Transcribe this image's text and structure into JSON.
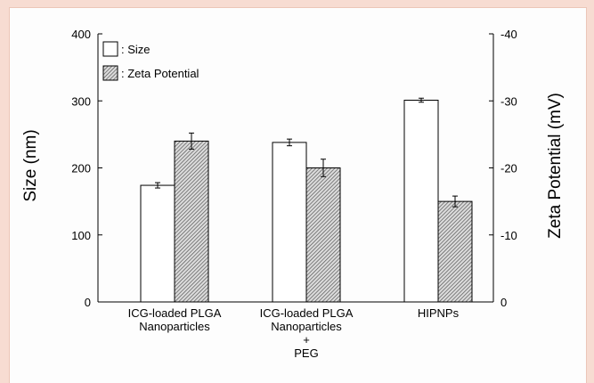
{
  "chart_data": {
    "type": "bar",
    "categories": [
      [
        "ICG-loaded PLGA",
        "Nanoparticles"
      ],
      [
        "ICG-loaded PLGA",
        "Nanoparticles",
        "+",
        "PEG"
      ],
      [
        "HIPNPs"
      ]
    ],
    "series": [
      {
        "name": ": Size",
        "axis": "left",
        "fill": "white",
        "values": [
          174,
          238,
          301
        ],
        "errors": [
          4,
          5,
          3
        ]
      },
      {
        "name": ": Zeta Potential",
        "axis": "right",
        "fill": "hatched",
        "values": [
          -24,
          -20,
          -15
        ],
        "errors": [
          1.2,
          1.3,
          0.8
        ]
      }
    ],
    "ylabel": "Size (nm)",
    "ylabel_right": "Zeta Potential (mV)",
    "ylim": [
      0,
      400
    ],
    "ylim_right": [
      0,
      -40
    ],
    "yticks": [
      "0",
      "100",
      "200",
      "300",
      "400"
    ],
    "yticks_right": [
      "0",
      "-10",
      "-20",
      "-30",
      "-40"
    ],
    "legend_position": "top-left",
    "grid": false
  },
  "colors": {
    "background": "#f7dcd2",
    "panel": "#fdfdfd",
    "bar_outline": "#000000",
    "hatch_fill": "#dcdcdc",
    "hatch_line": "#555555"
  }
}
